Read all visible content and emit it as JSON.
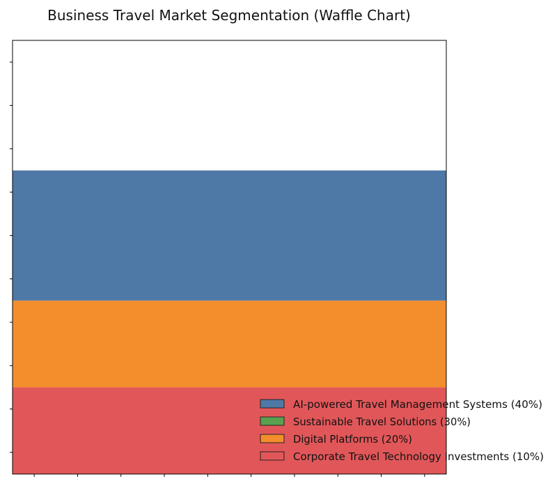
{
  "chart_data": {
    "type": "waffle",
    "title": "Business Travel Market Segmentation (Waffle Chart)",
    "xlabel": "",
    "ylabel": "",
    "grid_size": [
      10,
      10
    ],
    "categories": [
      "AI-powered Travel Management Systems (40%)",
      "Sustainable Travel Solutions (30%)",
      "Digital Platforms (20%)",
      "Corporate Travel Technology Investments (10%)"
    ],
    "values": [
      40,
      30,
      20,
      10
    ],
    "colors": [
      "#4e79a7",
      "#59a14f",
      "#f28e2b",
      "#e15759"
    ],
    "visible_rows": [
      {
        "category_index": 3,
        "rows": 2
      },
      {
        "category_index": 2,
        "rows": 2
      },
      {
        "category_index": 0,
        "rows": 3
      }
    ],
    "legend": {
      "placement": "bottom-right",
      "entries": [
        {
          "label": "AI-powered Travel Management Systems (40%)",
          "color": "#4e79a7"
        },
        {
          "label": "Sustainable Travel Solutions (30%)",
          "color": "#59a14f"
        },
        {
          "label": "Digital Platforms (20%)",
          "color": "#f28e2b"
        },
        {
          "label": "Corporate Travel Technology Investments (10%)",
          "color": "#e15759"
        }
      ]
    },
    "grid": false,
    "tick_labels": false
  }
}
